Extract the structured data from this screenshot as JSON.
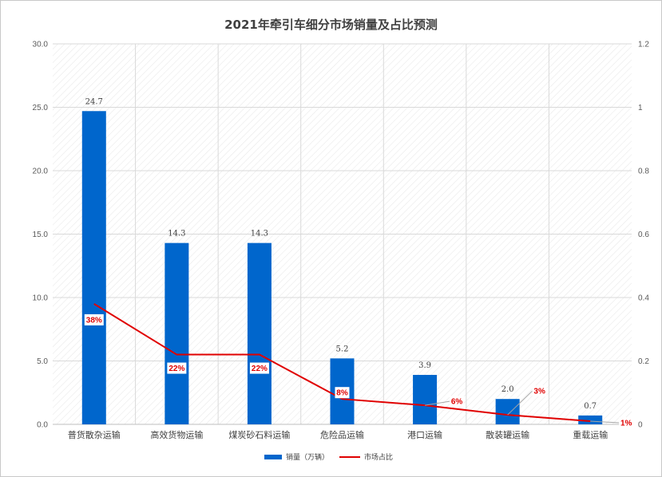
{
  "chart_data": {
    "type": "bar",
    "title": "2021年牵引车细分市场销量及占比预测",
    "categories": [
      "普货散杂运输",
      "高效货物运输",
      "煤炭砂石料运输",
      "危险品运输",
      "港口运输",
      "散装罐运输",
      "重载运输"
    ],
    "series": [
      {
        "name": "销量（万辆）",
        "type": "bar",
        "axis": "left",
        "color": "#0066cc",
        "values": [
          24.7,
          14.3,
          14.3,
          5.2,
          3.9,
          2.0,
          0.7
        ],
        "labels": [
          "24.7",
          "14.3",
          "14.3",
          "5.2",
          "3.9",
          "2.0",
          "0.7"
        ]
      },
      {
        "name": "市场占比",
        "type": "line",
        "axis": "right",
        "color": "#e00000",
        "values": [
          0.38,
          0.22,
          0.22,
          0.08,
          0.06,
          0.03,
          0.01
        ],
        "labels": [
          "38%",
          "22%",
          "22%",
          "8%",
          "6%",
          "3%",
          "1%"
        ]
      }
    ],
    "ylim": [
      0,
      30
    ],
    "y2lim": [
      0,
      1.2
    ],
    "yticks": [
      "0.0",
      "5.0",
      "10.0",
      "15.0",
      "20.0",
      "25.0",
      "30.0"
    ],
    "y2ticks": [
      "0",
      "0.2",
      "0.4",
      "0.6",
      "0.8",
      "1",
      "1.2"
    ],
    "grid": true,
    "legend_position": "bottom"
  }
}
